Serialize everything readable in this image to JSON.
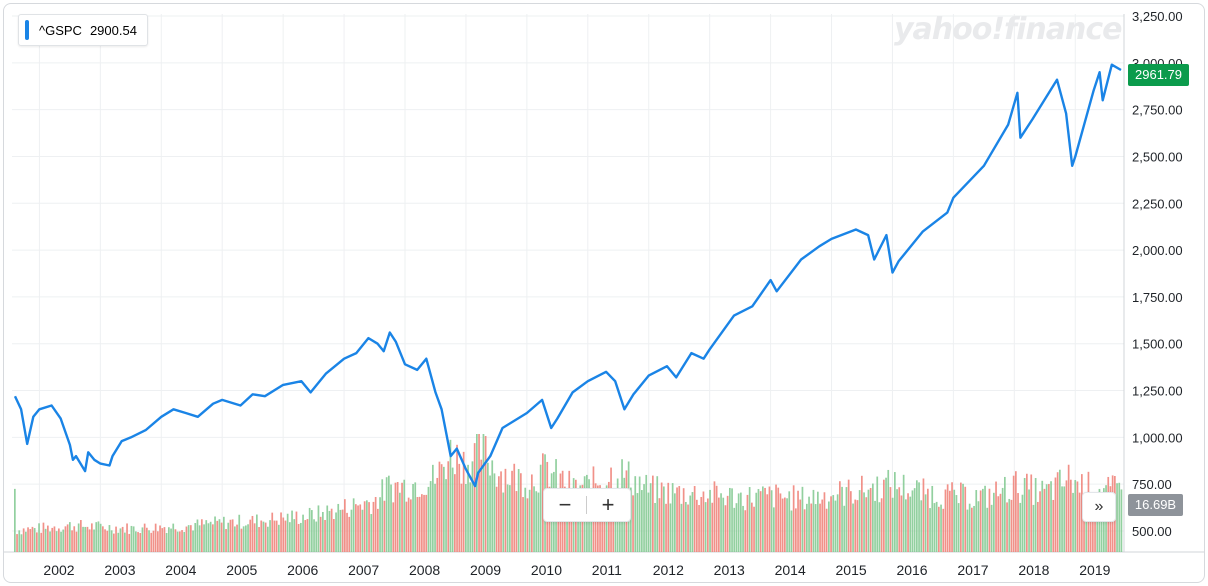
{
  "watermark": "yahoo!finance",
  "legend": {
    "symbol": "^GSPC",
    "value": "2900.54",
    "color": "#1a84e6"
  },
  "price_tag": {
    "value": "2961.79",
    "color": "#0b9b4c"
  },
  "volume_tag": {
    "value": "16.69B",
    "color": "#8e939a"
  },
  "controls": {
    "zoom_out": "−",
    "zoom_in": "+",
    "more": "»"
  },
  "chart_data": {
    "type": "line",
    "series": [
      {
        "name": "^GSPC",
        "color": "#1a84e6",
        "x": [
          2001.6,
          2001.7,
          2001.8,
          2001.9,
          2002.0,
          2002.2,
          2002.35,
          2002.5,
          2002.55,
          2002.6,
          2002.75,
          2002.8,
          2002.9,
          2003.0,
          2003.15,
          2003.2,
          2003.35,
          2003.5,
          2003.75,
          2004.0,
          2004.2,
          2004.4,
          2004.6,
          2004.85,
          2005.0,
          2005.3,
          2005.5,
          2005.7,
          2006.0,
          2006.3,
          2006.45,
          2006.7,
          2007.0,
          2007.2,
          2007.4,
          2007.55,
          2007.65,
          2007.75,
          2007.85,
          2008.0,
          2008.2,
          2008.35,
          2008.5,
          2008.6,
          2008.75,
          2008.85,
          2009.0,
          2009.15,
          2009.2,
          2009.4,
          2009.6,
          2010.0,
          2010.25,
          2010.4,
          2010.5,
          2010.75,
          2011.0,
          2011.3,
          2011.45,
          2011.6,
          2011.75,
          2012.0,
          2012.3,
          2012.45,
          2012.7,
          2012.9,
          2013.0,
          2013.4,
          2013.7,
          2014.0,
          2014.1,
          2014.5,
          2014.8,
          2015.0,
          2015.4,
          2015.6,
          2015.7,
          2015.9,
          2016.0,
          2016.1,
          2016.5,
          2016.9,
          2017.0,
          2017.5,
          2017.9,
          2018.05,
          2018.1,
          2018.3,
          2018.7,
          2018.85,
          2018.95,
          2019.0,
          2019.3,
          2019.4,
          2019.45,
          2019.6,
          2019.75
        ],
        "values": [
          1220,
          1150,
          965,
          1110,
          1150,
          1170,
          1100,
          960,
          880,
          900,
          820,
          920,
          880,
          860,
          850,
          900,
          980,
          1000,
          1040,
          1110,
          1150,
          1130,
          1110,
          1180,
          1200,
          1170,
          1230,
          1220,
          1280,
          1300,
          1240,
          1340,
          1420,
          1450,
          1530,
          1500,
          1460,
          1560,
          1510,
          1390,
          1360,
          1420,
          1240,
          1150,
          900,
          940,
          830,
          740,
          810,
          900,
          1050,
          1130,
          1200,
          1050,
          1100,
          1240,
          1300,
          1350,
          1300,
          1150,
          1230,
          1330,
          1380,
          1320,
          1450,
          1420,
          1470,
          1650,
          1700,
          1840,
          1780,
          1950,
          2020,
          2060,
          2110,
          2080,
          1950,
          2080,
          1880,
          1940,
          2100,
          2200,
          2280,
          2450,
          2670,
          2840,
          2600,
          2700,
          2910,
          2730,
          2450,
          2500,
          2850,
          2950,
          2800,
          2990,
          2961.79
        ]
      }
    ],
    "volume": {
      "x": [
        2001.6,
        2002.0,
        2002.5,
        2003.0,
        2003.5,
        2004.0,
        2004.5,
        2005.0,
        2005.5,
        2006.0,
        2006.5,
        2007.0,
        2007.5,
        2007.7,
        2008.0,
        2008.5,
        2008.75,
        2008.9,
        2009.0,
        2009.25,
        2009.5,
        2010.0,
        2010.3,
        2010.5,
        2010.75,
        2011.0,
        2011.5,
        2012.0,
        2012.5,
        2013.0,
        2013.5,
        2014.0,
        2014.5,
        2015.0,
        2015.5,
        2016.0,
        2016.5,
        2017.0,
        2017.5,
        2018.0,
        2018.5,
        2018.9,
        2019.0,
        2019.5,
        2019.75
      ],
      "values": [
        1.5,
        1.6,
        1.8,
        1.7,
        1.6,
        1.7,
        1.8,
        2.0,
        2.1,
        2.3,
        2.5,
        3.0,
        3.5,
        4.4,
        4.5,
        5.0,
        6.8,
        6.2,
        6.0,
        7.0,
        5.5,
        4.8,
        5.6,
        5.0,
        4.3,
        4.5,
        5.5,
        4.2,
        4.0,
        3.9,
        3.7,
        3.8,
        3.6,
        3.9,
        4.2,
        4.6,
        4.0,
        3.8,
        3.7,
        4.5,
        4.0,
        5.0,
        4.6,
        4.1,
        4.3
      ]
    },
    "xlabels": [
      "2002",
      "2003",
      "2004",
      "2005",
      "2006",
      "2007",
      "2008",
      "2009",
      "2010",
      "2011",
      "2012",
      "2013",
      "2014",
      "2015",
      "2016",
      "2017",
      "2018",
      "2019"
    ],
    "yticks": [
      "3,250.00",
      "3,000.00",
      "2,750.00",
      "2,500.00",
      "2,250.00",
      "2,000.00",
      "1,750.00",
      "1,500.00",
      "1,250.00",
      "1,000.00",
      "750.00",
      "500.00"
    ],
    "yvalues": [
      3250,
      3000,
      2750,
      2500,
      2250,
      2000,
      1750,
      1500,
      1250,
      1000,
      750,
      500
    ],
    "xlim": [
      2001.55,
      2019.8
    ],
    "ylim": [
      400,
      3300
    ],
    "grid": true,
    "up_color": "#7fc88e",
    "down_color": "#ef7e74"
  }
}
